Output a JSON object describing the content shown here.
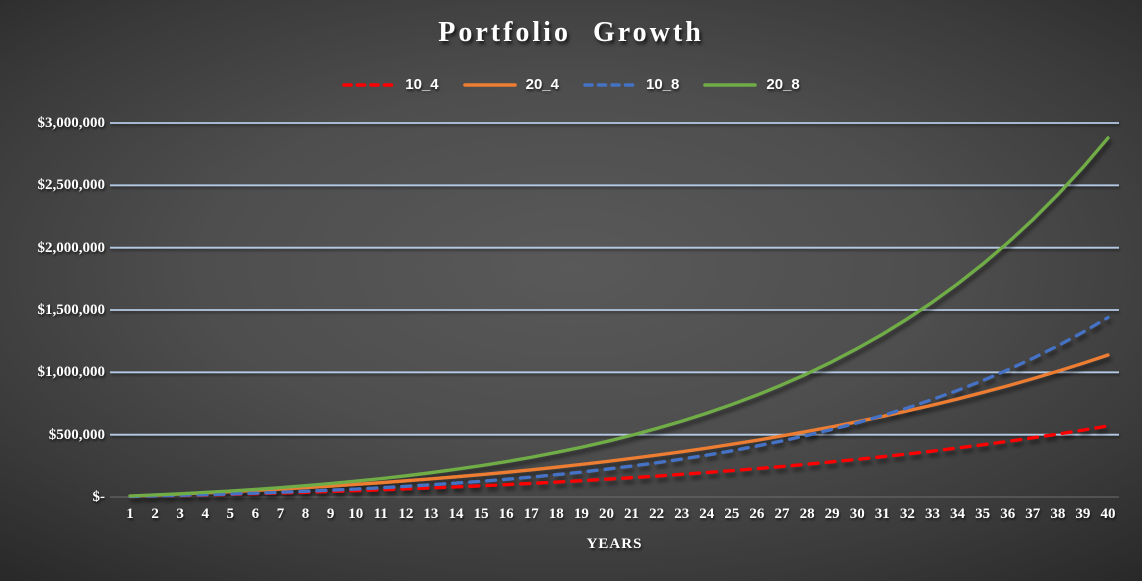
{
  "title": "Portfolio Growth",
  "axis": {
    "x_title": "YEARS",
    "y_ticks": [
      "$3,000,000",
      "$2,500,000",
      "$2,000,000",
      "$1,500,000",
      "$1,000,000",
      "$500,000",
      "$-"
    ]
  },
  "colors": {
    "background_center": "#595959",
    "background_edge": "#1f1f1f",
    "gridline": "#B4C9E4",
    "zero_axis_line": "#6e6e6e",
    "text": "#FFFFFF",
    "series_red": "#FF0000",
    "series_orange": "#ED7D31",
    "series_blue": "#4472C4",
    "series_green": "#70AD47"
  },
  "chart_data": {
    "type": "line",
    "title": "Portfolio Growth",
    "xlabel": "YEARS",
    "ylabel": "",
    "ylim": [
      0,
      3000000
    ],
    "y_tick_step": 500000,
    "grid": true,
    "legend_position": "top",
    "x": [
      1,
      2,
      3,
      4,
      5,
      6,
      7,
      8,
      9,
      10,
      11,
      12,
      13,
      14,
      15,
      16,
      17,
      18,
      19,
      20,
      21,
      22,
      23,
      24,
      25,
      26,
      27,
      28,
      29,
      30,
      31,
      32,
      33,
      34,
      35,
      36,
      37,
      38,
      39,
      40
    ],
    "series": [
      {
        "name": "10_4",
        "color": "#FF0000",
        "style": "dashed",
        "values": [
          3700,
          7659,
          11891,
          16410,
          21230,
          26369,
          31841,
          37666,
          43859,
          50441,
          57431,
          64850,
          72720,
          81062,
          89901,
          99262,
          109169,
          119652,
          130737,
          142454,
          154835,
          167912,
          181718,
          196289,
          211661,
          227875,
          244970,
          262987,
          281971,
          301970,
          323030,
          345201,
          368537,
          393092,
          418924,
          446092,
          474659,
          504691,
          536255,
          569424
        ]
      },
      {
        "name": "20_4",
        "color": "#ED7D31",
        "style": "solid",
        "values": [
          7400,
          15318,
          23782,
          32820,
          42460,
          52738,
          63682,
          75332,
          87718,
          100882,
          114862,
          129700,
          145440,
          162124,
          179802,
          198524,
          218338,
          239304,
          261474,
          284908,
          309670,
          335824,
          363436,
          392578,
          423322,
          455750,
          489940,
          525974,
          563942,
          603940,
          646060,
          690402,
          737074,
          786184,
          837848,
          892184,
          949318,
          1009382,
          1072510,
          1138848
        ]
      },
      {
        "name": "10_8",
        "color": "#4472C4",
        "style": "dashed",
        "values": [
          3900,
          8229,
          13025,
          18328,
          24184,
          30640,
          37748,
          45564,
          54150,
          63571,
          73898,
          85208,
          97585,
          111119,
          125908,
          142057,
          159679,
          178900,
          199851,
          222678,
          247536,
          274594,
          304034,
          336054,
          370866,
          408701,
          449808,
          494456,
          542935,
          595561,
          652672,
          714636,
          781850,
          854742,
          933776,
          1019452,
          1112311,
          1212782,
          1321965,
          1440074
        ]
      },
      {
        "name": "20_8",
        "color": "#70AD47",
        "style": "solid",
        "values": [
          7800,
          16458,
          26050,
          36656,
          48368,
          61280,
          75496,
          91128,
          108300,
          127142,
          147796,
          170416,
          195170,
          222238,
          251816,
          284114,
          319358,
          357800,
          399702,
          445356,
          495072,
          549188,
          608068,
          672108,
          741732,
          817402,
          899616,
          988912,
          1085870,
          1191122,
          1305344,
          1429272,
          1563700,
          1709484,
          1867552,
          2038904,
          2224622,
          2425564,
          2643930,
          2880148
        ]
      }
    ]
  }
}
